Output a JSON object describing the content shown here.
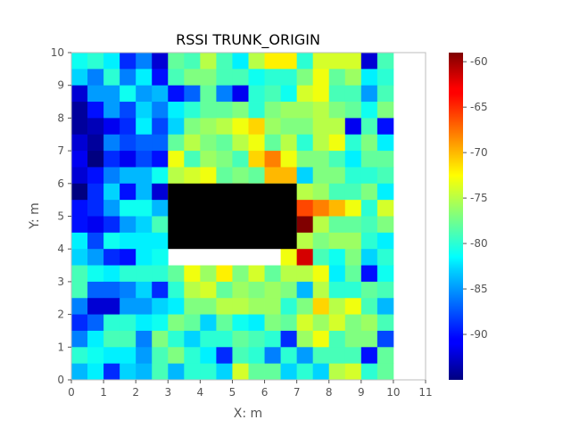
{
  "chart_data": {
    "type": "heatmap",
    "title": "RSSI TRUNK_ORIGIN",
    "xlabel": "X: m",
    "ylabel": "Y: m",
    "xlim": [
      0,
      11
    ],
    "ylim": [
      0,
      10
    ],
    "cell_size_m": 0.5,
    "x_ticks": [
      "0",
      "1",
      "2",
      "3",
      "4",
      "5",
      "6",
      "7",
      "8",
      "9",
      "10",
      "11"
    ],
    "y_ticks": [
      "0",
      "1",
      "2",
      "3",
      "4",
      "5",
      "6",
      "7",
      "8",
      "9",
      "10"
    ],
    "colorbar": {
      "colormap": "jet",
      "vmin": -95,
      "vmax": -59,
      "ticks": [
        "-60",
        "-65",
        "-70",
        "-75",
        "-80",
        "-85",
        "-90"
      ],
      "tick_values": [
        -60,
        -65,
        -70,
        -75,
        -80,
        -85,
        -90
      ]
    },
    "obstacle": {
      "x": [
        3,
        7
      ],
      "y": [
        4,
        6
      ],
      "color": "#000000"
    },
    "rows_top_to_bottom": [
      [
        -81,
        -80,
        -82,
        -89,
        -86,
        -92,
        -78,
        -79,
        -75,
        -79,
        -82,
        -75,
        -72,
        -72,
        -80,
        -74,
        -74,
        -74,
        -92,
        -79
      ],
      [
        -83,
        -86,
        -80,
        -86,
        -82,
        -90,
        -79,
        -77,
        -77,
        -79,
        -79,
        -81,
        -80,
        -80,
        -77,
        -73,
        -78,
        -76,
        -82,
        -80
      ],
      [
        -92,
        -85,
        -85,
        -81,
        -85,
        -84,
        -90,
        -87,
        -78,
        -86,
        -91,
        -80,
        -79,
        -81,
        -74,
        -73,
        -79,
        -79,
        -85,
        -79
      ],
      [
        -94,
        -90,
        -85,
        -88,
        -83,
        -86,
        -82,
        -80,
        -78,
        -78,
        -77,
        -80,
        -77,
        -76,
        -76,
        -75,
        -77,
        -78,
        -81,
        -77
      ],
      [
        -94,
        -93,
        -91,
        -89,
        -82,
        -88,
        -83,
        -77,
        -76,
        -75,
        -73,
        -71,
        -76,
        -77,
        -77,
        -75,
        -75,
        -91,
        -79,
        -90
      ],
      [
        -92,
        -94,
        -86,
        -88,
        -87,
        -87,
        -78,
        -75,
        -77,
        -78,
        -75,
        -73,
        -78,
        -75,
        -80,
        -75,
        -73,
        -80,
        -77,
        -82
      ],
      [
        -91,
        -95,
        -89,
        -91,
        -88,
        -90,
        -73,
        -79,
        -76,
        -77,
        -79,
        -71,
        -68,
        -73,
        -77,
        -77,
        -79,
        -82,
        -78,
        -78
      ],
      [
        -92,
        -90,
        -86,
        -84,
        -84,
        -81,
        -75,
        -74,
        -73,
        -78,
        -77,
        -78,
        -70,
        -70,
        -83,
        -77,
        -77,
        -80,
        -80,
        -79
      ],
      [
        -95,
        -89,
        -83,
        -90,
        -84,
        -92,
        -72,
        -75,
        -66,
        -64,
        -61,
        -69,
        -77,
        -77,
        -75,
        -76,
        -79,
        -79,
        -77,
        -82
      ],
      [
        -90,
        -89,
        -85,
        -81,
        -81,
        -84,
        null,
        null,
        null,
        null,
        null,
        null,
        null,
        -66,
        -66,
        -68,
        -70,
        -73,
        -80,
        -74
      ],
      [
        -90,
        -91,
        -89,
        -85,
        -83,
        -79,
        null,
        null,
        null,
        null,
        null,
        null,
        null,
        -78,
        -59,
        -75,
        -78,
        -78,
        -79,
        -77
      ],
      [
        -82,
        -88,
        -81,
        -82,
        -82,
        -82,
        null,
        null,
        null,
        null,
        null,
        null,
        null,
        -69,
        -75,
        -77,
        -76,
        -76,
        -80,
        -82
      ],
      [
        -83,
        -85,
        -89,
        -90,
        -82,
        -81,
        null,
        null,
        null,
        null,
        null,
        null,
        null,
        -73,
        -62,
        -79,
        -81,
        -77,
        -83,
        -80
      ],
      [
        -79,
        -81,
        -82,
        -80,
        -80,
        -80,
        -78,
        -73,
        -76,
        -72,
        -77,
        -74,
        -78,
        -75,
        -75,
        -73,
        -82,
        -78,
        -90,
        -81
      ],
      [
        -79,
        -87,
        -87,
        -86,
        -83,
        -89,
        -80,
        -75,
        -74,
        -78,
        -76,
        -77,
        -76,
        -77,
        -84,
        -75,
        -80,
        -80,
        -78,
        -79
      ],
      [
        -86,
        -92,
        -92,
        -85,
        -85,
        -83,
        -82,
        -77,
        -77,
        -75,
        -75,
        -76,
        -76,
        -80,
        -77,
        -71,
        -75,
        -73,
        -79,
        -84
      ],
      [
        -89,
        -87,
        -80,
        -80,
        -82,
        -81,
        -77,
        -78,
        -83,
        -78,
        -81,
        -82,
        -77,
        -78,
        -74,
        -76,
        -74,
        -77,
        -76,
        -79
      ],
      [
        -86,
        -82,
        -79,
        -79,
        -86,
        -77,
        -80,
        -83,
        -80,
        -80,
        -78,
        -79,
        -80,
        -89,
        -76,
        -73,
        -79,
        -77,
        -77,
        -88
      ],
      [
        -80,
        -81,
        -82,
        -82,
        -85,
        -79,
        -77,
        -80,
        -82,
        -89,
        -79,
        -80,
        -86,
        -80,
        -85,
        -79,
        -79,
        -79,
        -90,
        -78
      ],
      [
        -84,
        -82,
        -89,
        -83,
        -84,
        -79,
        -84,
        -80,
        -80,
        -83,
        -74,
        -78,
        -78,
        -83,
        -80,
        -83,
        -75,
        -74,
        -80,
        -78
      ]
    ]
  }
}
